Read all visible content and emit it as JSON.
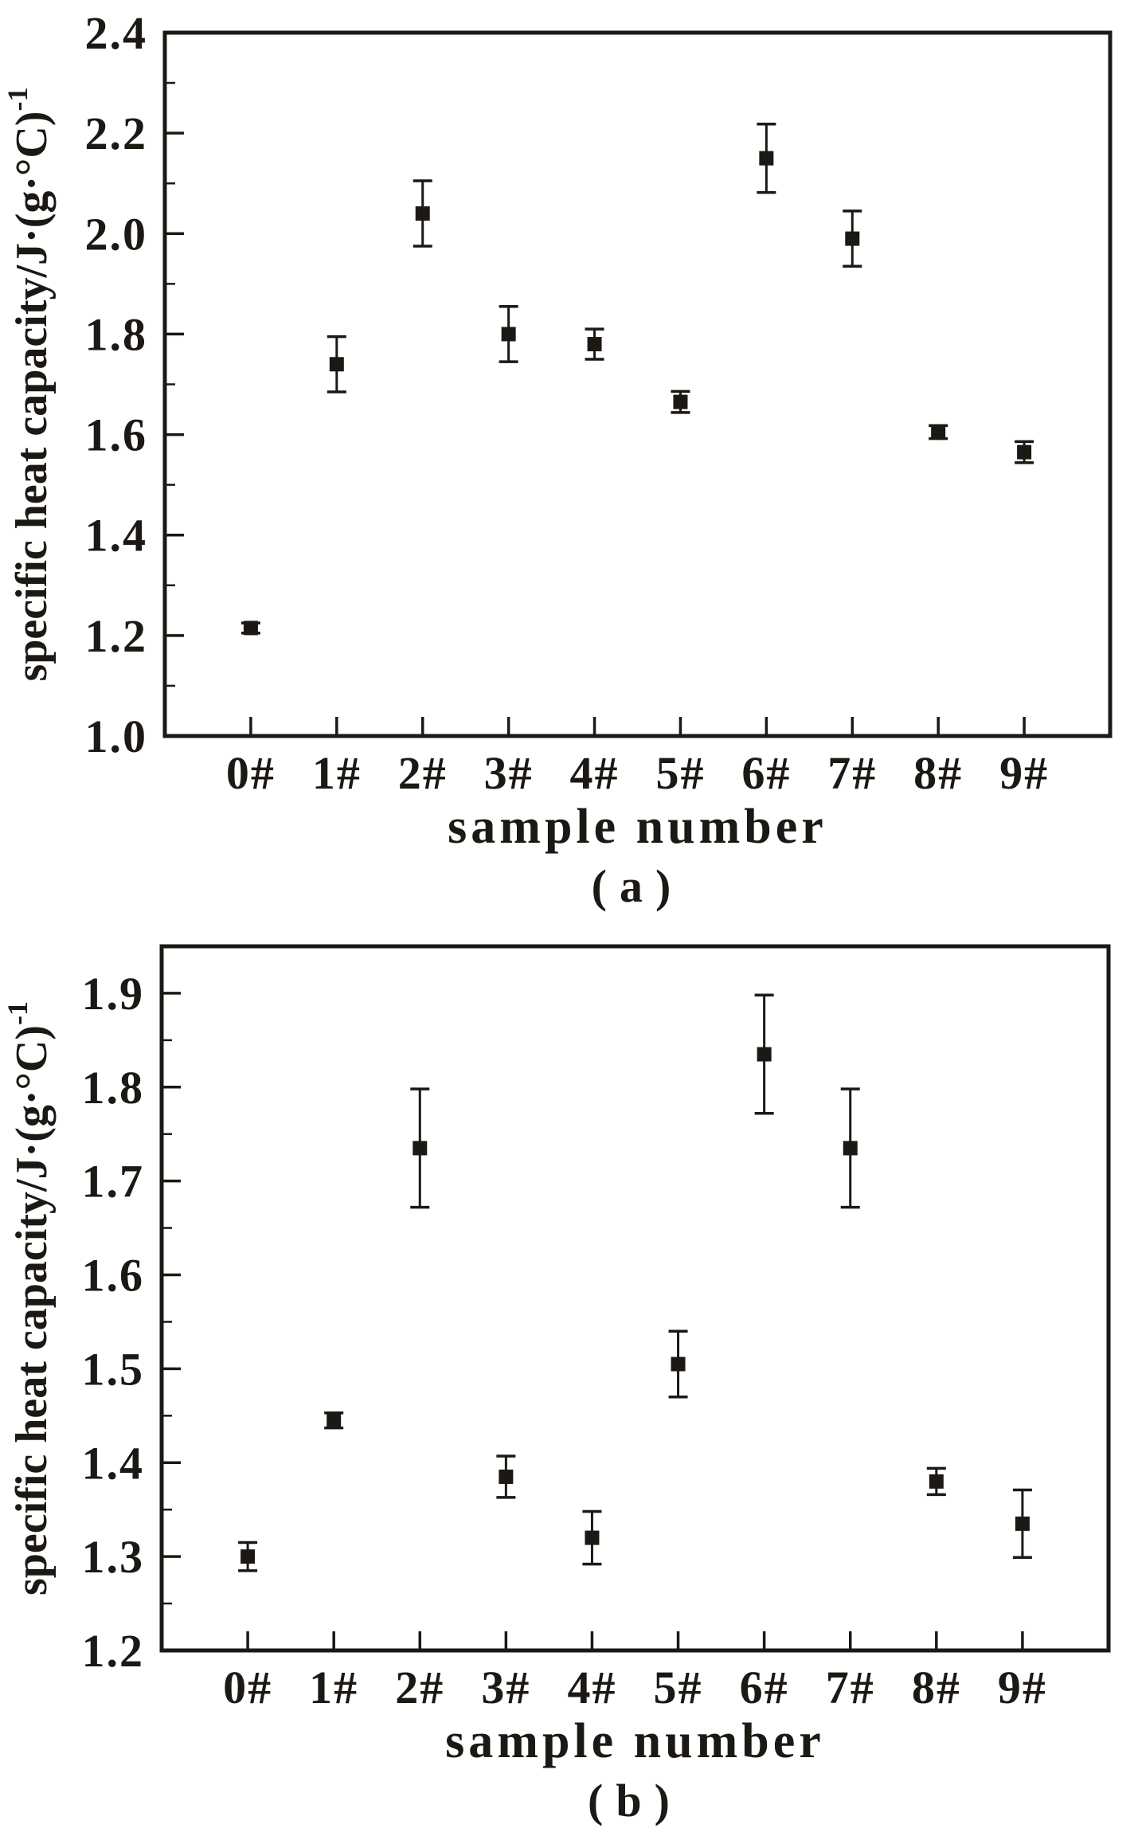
{
  "figure": {
    "ink_color": "#1c1914",
    "background_color": "#ffffff"
  },
  "chart_data": [
    {
      "type": "scatter",
      "panel": "a",
      "caption": "(a)",
      "xlabel": "sample number",
      "ylabel_base": "specific heat capacity/J·(g·°C)",
      "ylabel_exponent": "-1",
      "categories": [
        "0#",
        "1#",
        "2#",
        "3#",
        "4#",
        "5#",
        "6#",
        "7#",
        "8#",
        "9#"
      ],
      "values": [
        1.215,
        1.74,
        2.04,
        1.8,
        1.78,
        1.665,
        2.15,
        1.99,
        1.605,
        1.565
      ],
      "errors": [
        0.01,
        0.055,
        0.065,
        0.055,
        0.03,
        0.021,
        0.068,
        0.055,
        0.013,
        0.021
      ],
      "ylim": [
        1.0,
        2.4
      ],
      "yticks": [
        "1.0",
        "1.2",
        "1.4",
        "1.6",
        "1.8",
        "2.0",
        "2.2",
        "2.4"
      ],
      "ytick_step": 0.2,
      "minor_ticks_per_interval": 1,
      "grid": false,
      "legend": null,
      "marker": "filled-square",
      "error_bars": "vertical-with-caps"
    },
    {
      "type": "scatter",
      "panel": "b",
      "caption": "(b)",
      "xlabel": "sample number",
      "ylabel_base": "specific heat capacity/J·(g·°C)",
      "ylabel_exponent": "-1",
      "categories": [
        "0#",
        "1#",
        "2#",
        "3#",
        "4#",
        "5#",
        "6#",
        "7#",
        "8#",
        "9#"
      ],
      "values": [
        1.3,
        1.445,
        1.735,
        1.385,
        1.32,
        1.505,
        1.835,
        1.735,
        1.38,
        1.335
      ],
      "errors": [
        0.015,
        0.008,
        0.063,
        0.022,
        0.028,
        0.035,
        0.063,
        0.063,
        0.014,
        0.036
      ],
      "ylim": [
        1.2,
        1.95
      ],
      "yticks": [
        "1.2",
        "1.3",
        "1.4",
        "1.5",
        "1.6",
        "1.7",
        "1.8",
        "1.9"
      ],
      "ytick_step": 0.1,
      "minor_ticks_per_interval": 1,
      "grid": false,
      "legend": null,
      "marker": "filled-square",
      "error_bars": "vertical-with-caps"
    }
  ]
}
